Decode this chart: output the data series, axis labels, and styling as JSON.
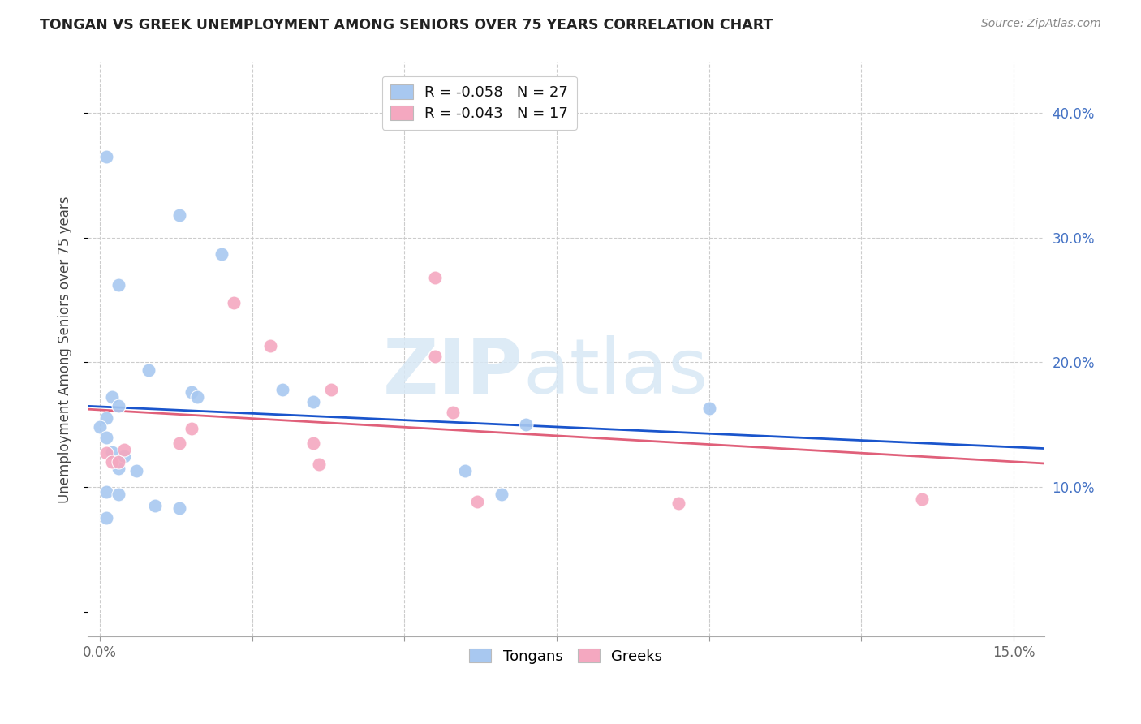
{
  "title": "TONGAN VS GREEK UNEMPLOYMENT AMONG SENIORS OVER 75 YEARS CORRELATION CHART",
  "source": "Source: ZipAtlas.com",
  "ylabel": "Unemployment Among Seniors over 75 years",
  "xlim": [
    -0.002,
    0.155
  ],
  "ylim": [
    -0.02,
    0.44
  ],
  "xticks": [
    0.0,
    0.025,
    0.05,
    0.075,
    0.1,
    0.125,
    0.15
  ],
  "xtick_labels": [
    "0.0%",
    "",
    "",
    "",
    "",
    "",
    "15.0%"
  ],
  "ytick_right_vals": [
    0.1,
    0.2,
    0.3,
    0.4
  ],
  "ytick_right_labels": [
    "10.0%",
    "20.0%",
    "30.0%",
    "40.0%"
  ],
  "grid_color": "#cccccc",
  "bg_color": "#ffffff",
  "tongan_color": "#a8c8f0",
  "greek_color": "#f4a8c0",
  "line_tongan_color": "#1a55cc",
  "line_greek_color": "#e0607a",
  "R_tongan": -0.058,
  "N_tongan": 27,
  "R_greek": -0.043,
  "N_greek": 17,
  "tongan_x": [
    0.001,
    0.013,
    0.02,
    0.003,
    0.008,
    0.002,
    0.003,
    0.001,
    0.0,
    0.001,
    0.002,
    0.004,
    0.015,
    0.016,
    0.003,
    0.006,
    0.03,
    0.035,
    0.001,
    0.003,
    0.009,
    0.013,
    0.06,
    0.066,
    0.07,
    0.1,
    0.001
  ],
  "tongan_y": [
    0.365,
    0.318,
    0.287,
    0.262,
    0.194,
    0.172,
    0.165,
    0.155,
    0.148,
    0.14,
    0.128,
    0.125,
    0.176,
    0.172,
    0.115,
    0.113,
    0.178,
    0.168,
    0.096,
    0.094,
    0.085,
    0.083,
    0.113,
    0.094,
    0.15,
    0.163,
    0.075
  ],
  "greek_x": [
    0.001,
    0.002,
    0.003,
    0.004,
    0.013,
    0.015,
    0.022,
    0.028,
    0.035,
    0.036,
    0.038,
    0.055,
    0.058,
    0.062,
    0.095,
    0.135,
    0.055
  ],
  "greek_y": [
    0.127,
    0.12,
    0.12,
    0.13,
    0.135,
    0.147,
    0.248,
    0.213,
    0.135,
    0.118,
    0.178,
    0.268,
    0.16,
    0.088,
    0.087,
    0.09,
    0.205
  ],
  "marker_size": 150
}
